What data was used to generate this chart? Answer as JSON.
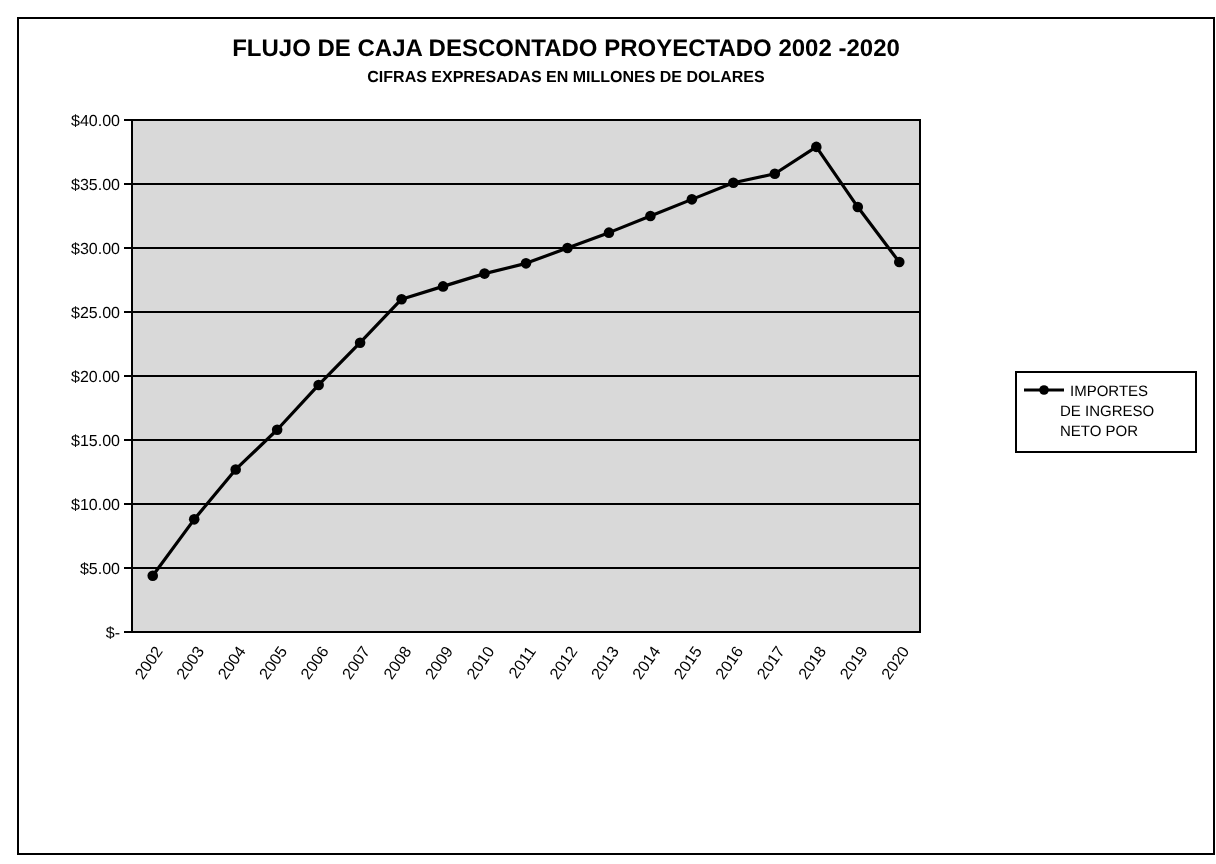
{
  "chart_data": {
    "type": "line",
    "title": "FLUJO DE CAJA DESCONTADO PROYECTADO 2002 -2020",
    "subtitle": "CIFRAS EXPRESADAS EN MILLONES DE DOLARES",
    "categories": [
      "2002",
      "2003",
      "2004",
      "2005",
      "2006",
      "2007",
      "2008",
      "2009",
      "2010",
      "2011",
      "2012",
      "2013",
      "2014",
      "2015",
      "2016",
      "2017",
      "2018",
      "2019",
      "2020"
    ],
    "series": [
      {
        "name": "IMPORTES DE INGRESO NETO POR",
        "color": "#000000",
        "values": [
          4.4,
          8.8,
          12.7,
          15.8,
          19.3,
          22.6,
          26.0,
          27.0,
          28.0,
          28.8,
          30.0,
          31.2,
          32.5,
          33.8,
          35.1,
          35.8,
          37.9,
          33.2,
          28.9
        ]
      }
    ],
    "ylim": [
      0,
      40
    ],
    "yticks": [
      {
        "value": 0,
        "label": "$-"
      },
      {
        "value": 5,
        "label": "$5.00"
      },
      {
        "value": 10,
        "label": "$10.00"
      },
      {
        "value": 15,
        "label": "$15.00"
      },
      {
        "value": 20,
        "label": "$20.00"
      },
      {
        "value": 25,
        "label": "$25.00"
      },
      {
        "value": 30,
        "label": "$30.00"
      },
      {
        "value": 35,
        "label": "$35.00"
      },
      {
        "value": 40,
        "label": "$40.00"
      }
    ],
    "grid": "y",
    "legend": "right",
    "marker": "circle",
    "line_style": "solid"
  }
}
